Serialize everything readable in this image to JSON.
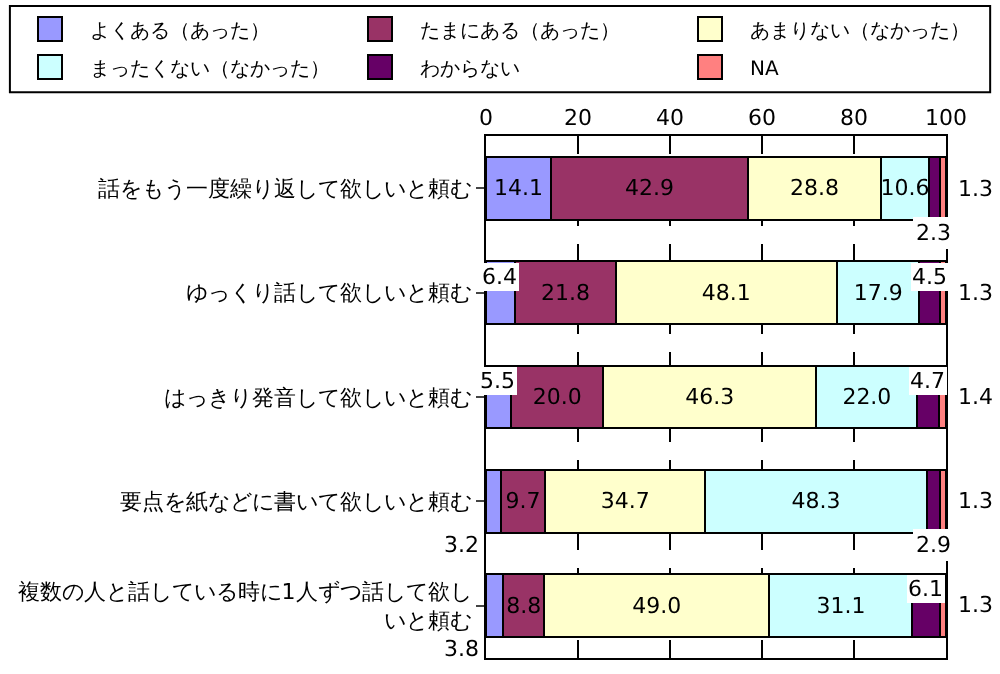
{
  "chart_data": {
    "type": "bar",
    "orientation": "horizontal",
    "stacked": true,
    "categories": [
      "話をもう一度繰り返して欲しいと頼む",
      "ゆっくり話して欲しいと頼む",
      "はっきり発音して欲しいと頼む",
      "要点を紙などに書いて欲しいと頼む",
      "複数の人と話している時に1人ずつ話して欲しいと頼む"
    ],
    "series": [
      {
        "name": "よくある（あった）",
        "color": "#9999ff",
        "values": [
          14.1,
          6.4,
          5.5,
          3.2,
          3.8
        ],
        "value_labels": [
          "14.1",
          "6.4",
          "5.5",
          "3.2",
          "3.8"
        ]
      },
      {
        "name": "たまにある（あった）",
        "color": "#993366",
        "values": [
          42.9,
          21.8,
          20.0,
          9.7,
          8.8
        ],
        "value_labels": [
          "42.9",
          "21.8",
          "20.0",
          "9.7",
          "8.8"
        ]
      },
      {
        "name": "あまりない（なかった）",
        "color": "#ffffcc",
        "values": [
          28.8,
          48.1,
          46.3,
          34.7,
          49.0
        ],
        "value_labels": [
          "28.8",
          "48.1",
          "46.3",
          "34.7",
          "49.0"
        ]
      },
      {
        "name": "まったくない（なかった）",
        "color": "#ccffff",
        "values": [
          10.6,
          17.9,
          22.0,
          48.3,
          31.1
        ],
        "value_labels": [
          "10.6",
          "17.9",
          "22.0",
          "48.3",
          "31.1"
        ]
      },
      {
        "name": "わからない",
        "color": "#660066",
        "values": [
          2.3,
          4.5,
          4.7,
          2.9,
          6.1
        ],
        "value_labels": [
          "2.3",
          "4.5",
          "4.7",
          "2.9",
          "6.1"
        ]
      },
      {
        "name": "NA",
        "color": "#ff8080",
        "values": [
          1.3,
          1.3,
          1.4,
          1.3,
          1.3
        ],
        "value_labels": [
          "1.3",
          "1.3",
          "1.4",
          "1.3",
          "1.3"
        ]
      }
    ],
    "xlim": [
      0,
      100
    ],
    "xticks": [
      0,
      20,
      40,
      60,
      80,
      100
    ],
    "grid": "x",
    "legend": "top"
  }
}
